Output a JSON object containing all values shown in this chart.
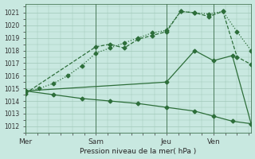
{
  "bg_color": "#c8e8e0",
  "grid_color": "#a0c8b8",
  "line_color": "#2d6e3a",
  "xlabel": "Pression niveau de la mer( hPa )",
  "ylim": [
    1011.5,
    1021.7
  ],
  "yticks": [
    1012,
    1013,
    1014,
    1015,
    1016,
    1017,
    1018,
    1019,
    1020,
    1021
  ],
  "xtick_labels": [
    "Mer",
    "Sam",
    "Jeu",
    "Ven"
  ],
  "xtick_positions": [
    0,
    30,
    60,
    80
  ],
  "xlim": [
    0,
    96
  ],
  "vline_positions": [
    0,
    30,
    60,
    80
  ],
  "series": [
    {
      "x": [
        0,
        6,
        12,
        18,
        24,
        30,
        36,
        42,
        48,
        54,
        60,
        66,
        72,
        78,
        84,
        90,
        96
      ],
      "y": [
        1014.7,
        1015.0,
        1015.4,
        1016.0,
        1016.8,
        1017.8,
        1018.2,
        1018.6,
        1019.0,
        1019.4,
        1019.6,
        1021.1,
        1021.0,
        1020.9,
        1021.1,
        1019.5,
        1018.0
      ],
      "style": ":",
      "marker": "D",
      "markersize": 2.5
    },
    {
      "x": [
        0,
        30,
        36,
        42,
        48,
        54,
        60,
        66,
        72,
        78,
        84,
        90,
        96
      ],
      "y": [
        1014.6,
        1018.3,
        1018.5,
        1018.2,
        1018.9,
        1019.2,
        1019.5,
        1021.1,
        1021.0,
        1020.7,
        1021.1,
        1017.5,
        1016.9
      ],
      "style": "--",
      "marker": "D",
      "markersize": 2.5
    },
    {
      "x": [
        0,
        60,
        72,
        80,
        88,
        96
      ],
      "y": [
        1014.8,
        1015.5,
        1018.0,
        1017.2,
        1017.6,
        1012.2
      ],
      "style": "-",
      "marker": "D",
      "markersize": 2.5
    },
    {
      "x": [
        0,
        12,
        24,
        36,
        48,
        60,
        72,
        80,
        88,
        96
      ],
      "y": [
        1014.8,
        1014.5,
        1014.2,
        1014.0,
        1013.8,
        1013.5,
        1013.2,
        1012.8,
        1012.4,
        1012.2
      ],
      "style": "-",
      "marker": "D",
      "markersize": 2.5
    }
  ]
}
